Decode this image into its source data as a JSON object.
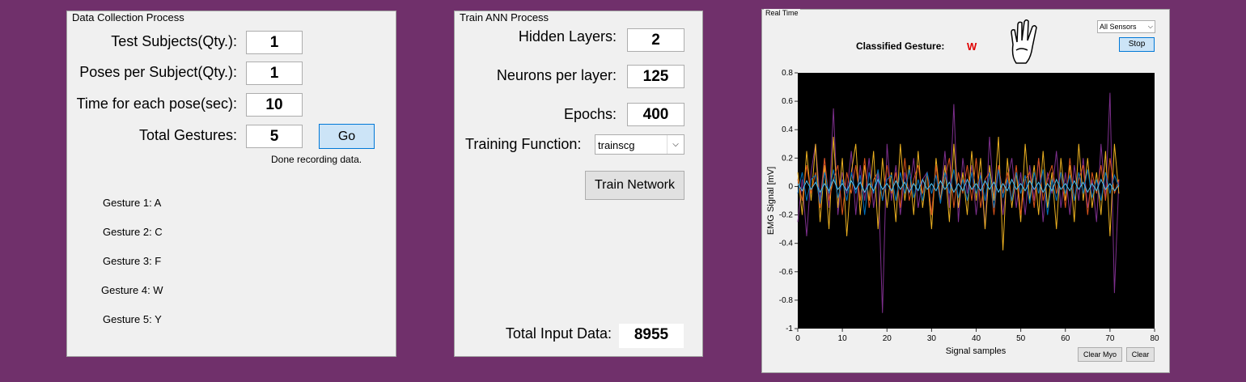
{
  "data_collection": {
    "title": "Data Collection Process",
    "fields": [
      {
        "label": "Test Subjects(Qty.):",
        "value": 1
      },
      {
        "label": "Poses per Subject(Qty.):",
        "value": 1
      },
      {
        "label": "Time for each pose(sec):",
        "value": 10
      },
      {
        "label": "Total Gestures:",
        "value": 5
      }
    ],
    "button": "Go",
    "status": "Done recording data.",
    "gestures": [
      "Gesture 1: A",
      "Gesture 2: C",
      "Gesture 3: F",
      "Gesture 4: W",
      "Gesture 5: Y"
    ]
  },
  "train": {
    "title": "Train ANN Process",
    "fields": [
      {
        "label": "Hidden Layers:",
        "value": 2
      },
      {
        "label": "Neurons per layer:",
        "value": 125
      },
      {
        "label": "Epochs:",
        "value": 400
      }
    ],
    "function_label": "Training Function:",
    "function_value": "trainscg",
    "button": "Train Network",
    "total_label": "Total Input Data:",
    "total_value": 8955
  },
  "realtime": {
    "title": "Real Time",
    "classified_label": "Classified Gesture:",
    "classified_value": "W",
    "sensor_select": "All Sensors",
    "stop_button": "Stop",
    "clear_myo_button": "Clear Myo",
    "clear_button": "Clear"
  },
  "chart_data": {
    "type": "line",
    "x_label": "Signal samples",
    "y_label": "EMG Signal [mV]",
    "x": [
      0,
      1,
      2,
      3,
      4,
      5,
      6,
      7,
      8,
      9,
      10,
      11,
      12,
      13,
      14,
      15,
      16,
      17,
      18,
      19,
      20,
      21,
      22,
      23,
      24,
      25,
      26,
      27,
      28,
      29,
      30,
      31,
      32,
      33,
      34,
      35,
      36,
      37,
      38,
      39,
      40,
      41,
      42,
      43,
      44,
      45,
      46,
      47,
      48,
      49,
      50,
      51,
      52,
      53,
      54,
      55,
      56,
      57,
      58,
      59,
      60,
      61,
      62,
      63,
      64,
      65,
      66,
      67,
      68,
      69,
      70,
      71,
      72
    ],
    "xlim": [
      0,
      80
    ],
    "xticks": [
      0,
      10,
      20,
      30,
      40,
      50,
      60,
      70,
      80
    ],
    "ylim": [
      -1,
      0.8
    ],
    "yticks": [
      -1,
      -0.8,
      -0.6,
      -0.4,
      -0.2,
      0,
      0.2,
      0.4,
      0.6,
      0.8
    ],
    "series": [
      {
        "color": "#7E2F8E",
        "values": [
          -0.25,
          0.05,
          -0.35,
          0.1,
          0.3,
          -0.1,
          0.2,
          -0.15,
          0.55,
          -0.2,
          0.1,
          -0.05,
          0.25,
          -0.2,
          0.15,
          -0.1,
          0.2,
          -0.15,
          0.1,
          -0.89,
          0.3,
          -0.1,
          0.15,
          -0.2,
          0.1,
          -0.05,
          0.2,
          -0.15,
          0.05,
          0.1,
          -0.2,
          0.15,
          -0.1,
          0.25,
          -0.15,
          0.58,
          -0.25,
          0.2,
          -0.05,
          0.15,
          -0.2,
          0.1,
          -0.3,
          0.35,
          -0.1,
          0.15,
          -0.2,
          0.05,
          0.2,
          -0.15,
          0.1,
          -0.2,
          0.15,
          -0.1,
          0.2,
          -0.25,
          0.1,
          -0.05,
          0.25,
          -0.15,
          0.1,
          -0.2,
          0.15,
          -0.1,
          0.2,
          -0.15,
          0.05,
          -0.25,
          0.3,
          -0.1,
          0.66,
          -0.75,
          0.05
        ]
      },
      {
        "color": "#EDB120",
        "values": [
          0.1,
          -0.2,
          0.25,
          -0.1,
          0.3,
          -0.25,
          0.15,
          -0.3,
          0.35,
          -0.15,
          0.2,
          -0.35,
          0.1,
          0.3,
          -0.2,
          0.15,
          -0.1,
          0.25,
          -0.3,
          0.2,
          -0.15,
          0.1,
          -0.25,
          0.3,
          -0.1,
          0.15,
          -0.2,
          0.25,
          -0.15,
          0.1,
          -0.3,
          0.2,
          -0.1,
          0.15,
          -0.25,
          0.3,
          -0.15,
          0.1,
          -0.2,
          0.25,
          -0.1,
          0.2,
          -0.3,
          0.15,
          -0.1,
          0.35,
          -0.45,
          0.2,
          -0.15,
          0.1,
          -0.25,
          0.3,
          -0.1,
          0.15,
          -0.2,
          0.25,
          -0.15,
          0.1,
          -0.3,
          0.2,
          -0.1,
          0.15,
          -0.25,
          0.3,
          -0.1,
          0.2,
          -0.15,
          0.1,
          -0.2,
          0.25,
          -0.35,
          0.3,
          -0.05
        ]
      },
      {
        "color": "#D95319",
        "values": [
          0.05,
          -0.1,
          0.15,
          -0.05,
          0.1,
          -0.15,
          0.2,
          -0.1,
          0.05,
          0.15,
          -0.2,
          0.1,
          -0.05,
          0.15,
          -0.1,
          0.2,
          -0.15,
          0.05,
          0.1,
          -0.1,
          0.15,
          -0.05,
          0.1,
          -0.15,
          0.2,
          -0.1,
          0.05,
          0.15,
          -0.05,
          0.1,
          -0.2,
          0.15,
          -0.1,
          0.05,
          0.2,
          -0.15,
          0.1,
          -0.05,
          0.15,
          -0.1,
          0.2,
          -0.15,
          0.05,
          0.1,
          -0.2,
          0.15,
          -0.05,
          0.1,
          -0.1,
          0.15,
          -0.2,
          0.05,
          0.1,
          -0.15,
          0.2,
          -0.1,
          0.05,
          0.15,
          -0.05,
          0.1,
          -0.15,
          0.2,
          -0.1,
          0.05,
          0.15,
          -0.2,
          0.1,
          -0.05,
          0.15,
          -0.1,
          0.2,
          -0.05,
          0.05
        ]
      },
      {
        "color": "#0072BD",
        "values": [
          -0.05,
          0.1,
          -0.1,
          0.05,
          0.08,
          -0.12,
          0.1,
          -0.05,
          0.12,
          -0.08,
          0.05,
          -0.1,
          0.1,
          -0.05,
          0.08,
          -0.2,
          0.1,
          -0.05,
          0.12,
          -0.1,
          0.05,
          0.08,
          -0.1,
          0.1,
          -0.05,
          0.12,
          -0.08,
          0.05,
          -0.1,
          0.1,
          -0.05,
          0.08,
          -0.12,
          0.1,
          -0.05,
          0.12,
          -0.08,
          0.05,
          -0.1,
          0.1,
          -0.05,
          0.08,
          -0.1,
          0.1,
          -0.15,
          0.12,
          -0.08,
          0.05,
          -0.1,
          0.1,
          -0.05,
          0.08,
          -0.12,
          0.1,
          -0.05,
          0.12,
          -0.2,
          0.05,
          -0.1,
          0.1,
          -0.05,
          0.08,
          -0.1,
          0.1,
          -0.05,
          0.12,
          -0.08,
          0.05,
          -0.1,
          0.1,
          -0.05,
          0.08,
          0
        ]
      },
      {
        "color": "#4DBEEE",
        "values": [
          0.02,
          -0.03,
          0.04,
          -0.02,
          0.03,
          -0.04,
          0.02,
          -0.03,
          0.05,
          -0.02,
          0.02,
          -0.03,
          0.04,
          -0.02,
          0.03,
          -0.04,
          0.02,
          -0.03,
          0.05,
          -0.02,
          0.02,
          -0.03,
          0.04,
          -0.02,
          0.03,
          -0.04,
          0.02,
          -0.03,
          0.05,
          -0.02,
          0.02,
          -0.03,
          0.04,
          -0.02,
          0.03,
          -0.04,
          0.02,
          -0.03,
          0.05,
          -0.02,
          0.02,
          -0.03,
          0.04,
          -0.02,
          0.03,
          -0.04,
          0.02,
          -0.03,
          0.05,
          -0.02,
          0.02,
          -0.03,
          0.04,
          -0.02,
          0.03,
          -0.04,
          0.02,
          -0.03,
          0.05,
          -0.02,
          0.02,
          -0.03,
          0.04,
          -0.02,
          0.03,
          -0.04,
          0.02,
          -0.03,
          0.05,
          -0.02,
          0.02,
          -0.03,
          0.01
        ]
      }
    ]
  }
}
